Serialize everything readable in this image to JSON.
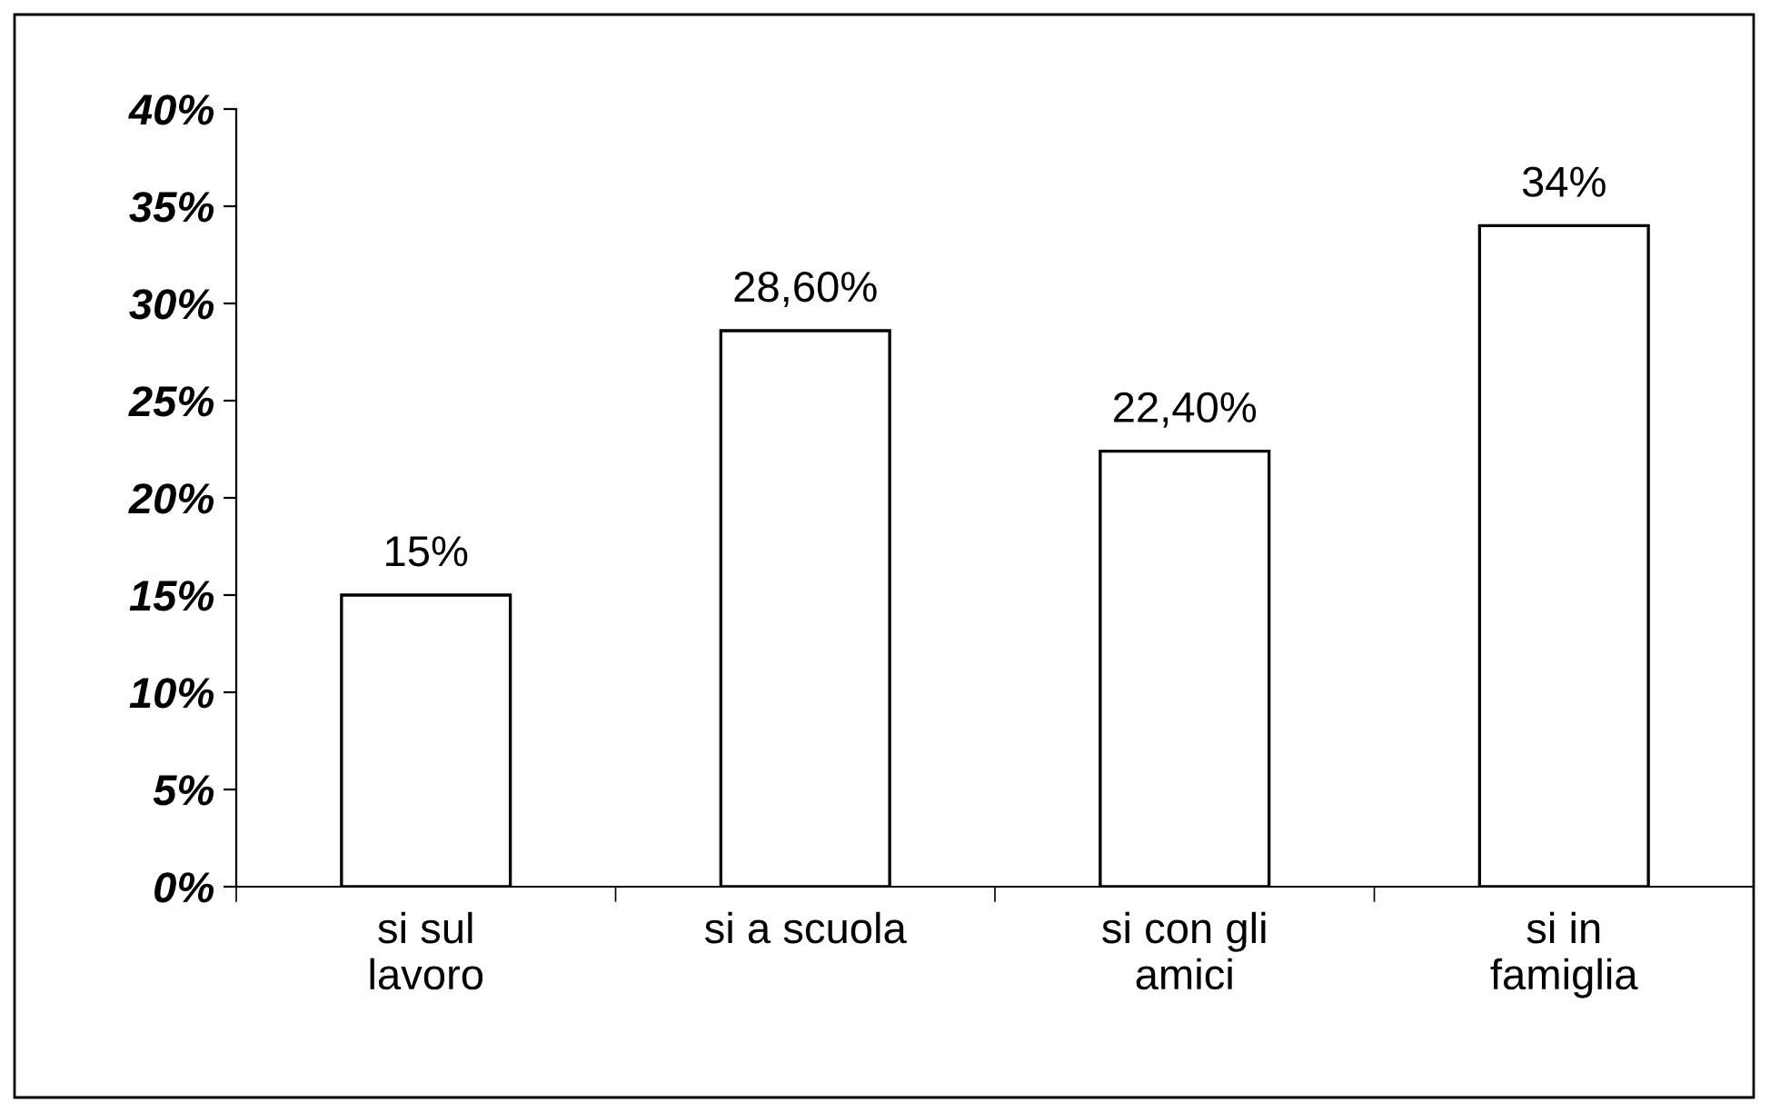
{
  "chart_data": {
    "type": "bar",
    "categories": [
      "si sul lavoro",
      "si a scuola",
      "si con gli amici",
      "si in famiglia"
    ],
    "values": [
      15,
      28.6,
      22.4,
      34
    ],
    "value_labels": [
      "15%",
      "28,60%",
      "22,40%",
      "34%"
    ],
    "color": "#ffffff",
    "ylim": [
      0,
      40
    ],
    "yticks": [
      {
        "value": 0,
        "label": "0%"
      },
      {
        "value": 5,
        "label": "5%"
      },
      {
        "value": 10,
        "label": "10%"
      },
      {
        "value": 15,
        "label": "15%"
      },
      {
        "value": 20,
        "label": "20%"
      },
      {
        "value": 25,
        "label": "25%"
      },
      {
        "value": 30,
        "label": "30%"
      },
      {
        "value": 35,
        "label": "35%"
      },
      {
        "value": 40,
        "label": "40%"
      }
    ],
    "grid": false,
    "legend": false
  }
}
